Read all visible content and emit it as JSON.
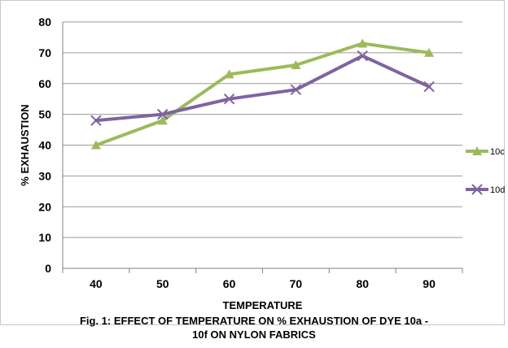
{
  "chart_data": {
    "type": "line",
    "title": "",
    "xlabel": "TEMPERATURE",
    "ylabel": "% EXHAUSTION",
    "categories": [
      "40",
      "50",
      "60",
      "70",
      "80",
      "90"
    ],
    "ylim": [
      0,
      80
    ],
    "yticks": [
      "0",
      "10",
      "20",
      "30",
      "40",
      "50",
      "60",
      "70",
      "80"
    ],
    "grid": "horizontal",
    "legend": "right",
    "series": [
      {
        "name": "10c",
        "values": [
          40,
          48,
          63,
          66,
          73,
          70
        ],
        "color": "#9bbb59",
        "marker": "triangle"
      },
      {
        "name": "10d",
        "values": [
          48,
          50,
          55,
          58,
          69,
          59
        ],
        "color": "#7f63a1",
        "marker": "x"
      }
    ]
  },
  "caption": {
    "line1": "Fig. 1: EFFECT OF TEMPERATURE ON % EXHAUSTION OF DYE 10a -",
    "line2": "10f ON NYLON FABRICS"
  }
}
